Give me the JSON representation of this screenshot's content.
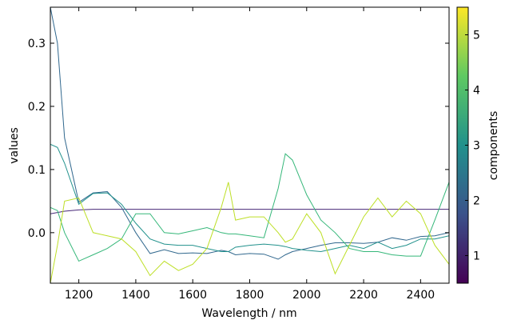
{
  "chart_data": {
    "type": "line",
    "x_label": "Wavelength / nm",
    "y_label": "values",
    "x": [
      1100,
      1125,
      1150,
      1200,
      1250,
      1300,
      1350,
      1400,
      1450,
      1500,
      1550,
      1600,
      1650,
      1700,
      1725,
      1750,
      1800,
      1850,
      1900,
      1925,
      1950,
      2000,
      2050,
      2100,
      2150,
      2200,
      2250,
      2300,
      2350,
      2400,
      2450,
      2500
    ],
    "series": [
      {
        "color": "#482878",
        "values": [
          0.03,
          0.032,
          0.034,
          0.036,
          0.037,
          0.037,
          0.037,
          0.037,
          0.037,
          0.037,
          0.037,
          0.037,
          0.037,
          0.037,
          0.037,
          0.037,
          0.037,
          0.037,
          0.037,
          0.037,
          0.037,
          0.037,
          0.037,
          0.037,
          0.037,
          0.037,
          0.037,
          0.037,
          0.037,
          0.037,
          0.037,
          0.037
        ]
      },
      {
        "color": "#31688e",
        "values": [
          0.357,
          0.3,
          0.15,
          0.048,
          0.063,
          0.065,
          0.04,
          0.0,
          -0.033,
          -0.027,
          -0.033,
          -0.032,
          -0.033,
          -0.028,
          -0.03,
          -0.035,
          -0.033,
          -0.034,
          -0.042,
          -0.035,
          -0.03,
          -0.025,
          -0.02,
          -0.016,
          -0.016,
          -0.017,
          -0.015,
          -0.008,
          -0.012,
          -0.006,
          -0.005,
          0.0
        ]
      },
      {
        "color": "#21918c",
        "values": [
          0.14,
          0.135,
          0.11,
          0.045,
          0.062,
          0.063,
          0.045,
          0.015,
          -0.01,
          -0.018,
          -0.02,
          -0.02,
          -0.025,
          -0.03,
          -0.03,
          -0.023,
          -0.02,
          -0.018,
          -0.02,
          -0.022,
          -0.025,
          -0.028,
          -0.03,
          -0.025,
          -0.02,
          -0.025,
          -0.015,
          -0.025,
          -0.02,
          -0.01,
          -0.01,
          -0.005
        ]
      },
      {
        "color": "#35b779",
        "values": [
          0.04,
          0.035,
          0.0,
          -0.045,
          -0.035,
          -0.025,
          -0.01,
          0.03,
          0.03,
          0.0,
          -0.002,
          0.003,
          0.008,
          0.0,
          -0.002,
          -0.002,
          -0.005,
          -0.008,
          0.07,
          0.125,
          0.115,
          0.06,
          0.02,
          0.0,
          -0.025,
          -0.03,
          -0.03,
          -0.035,
          -0.037,
          -0.037,
          0.02,
          0.08
        ]
      },
      {
        "color": "#bddf26",
        "values": [
          -0.08,
          -0.02,
          0.05,
          0.055,
          0.0,
          -0.005,
          -0.01,
          -0.03,
          -0.068,
          -0.045,
          -0.06,
          -0.05,
          -0.025,
          0.04,
          0.08,
          0.02,
          0.025,
          0.025,
          0.0,
          -0.015,
          -0.01,
          0.03,
          0.0,
          -0.065,
          -0.02,
          0.025,
          0.055,
          0.025,
          0.05,
          0.03,
          -0.02,
          -0.05
        ]
      }
    ],
    "xlim": [
      1100,
      2500
    ],
    "xticks": [
      1200,
      1400,
      1600,
      1800,
      2000,
      2200,
      2400
    ],
    "ylim": [
      -0.08,
      0.357
    ],
    "yticks": [
      {
        "value": 0,
        "label": "0.0"
      },
      0.1,
      0.2,
      0.3
    ],
    "colorbar": {
      "label": "components",
      "colormap": "viridis",
      "lim": [
        0.5,
        5.5
      ],
      "ticks": [
        1,
        2,
        3,
        4,
        5
      ]
    }
  }
}
